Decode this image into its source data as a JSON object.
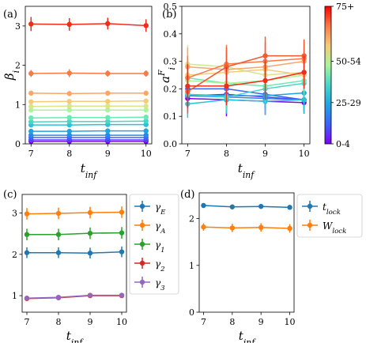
{
  "chart_data": [
    {
      "type": "line",
      "panel_label": "(a)",
      "xlabel_base": "t",
      "xlabel_sub": "inf",
      "ylabel_base": "β",
      "ylabel_sub": "i",
      "x": [
        7,
        8,
        9,
        10
      ],
      "xlim": [
        6.85,
        10.15
      ],
      "ylim": [
        0,
        3.5
      ],
      "xticks": [
        "7",
        "8",
        "9",
        "10"
      ],
      "yticks": [
        "0",
        "1",
        "2",
        "3"
      ],
      "yticks_values": [
        0,
        1,
        2,
        3
      ],
      "series": [
        {
          "values": [
            0.06,
            0.06,
            0.06,
            0.06
          ],
          "err": [
            0.02,
            0.02,
            0.02,
            0.02
          ],
          "color": "#7f00ff"
        },
        {
          "values": [
            0.1,
            0.1,
            0.1,
            0.1
          ],
          "err": [
            0.02,
            0.02,
            0.02,
            0.02
          ],
          "color": "#5a3dfc"
        },
        {
          "values": [
            0.16,
            0.16,
            0.16,
            0.16
          ],
          "err": [
            0.02,
            0.02,
            0.02,
            0.02
          ],
          "color": "#3c63f7"
        },
        {
          "values": [
            0.22,
            0.22,
            0.22,
            0.22
          ],
          "err": [
            0.02,
            0.02,
            0.02,
            0.02
          ],
          "color": "#2a86ef"
        },
        {
          "values": [
            0.32,
            0.32,
            0.33,
            0.33
          ],
          "err": [
            0.03,
            0.03,
            0.03,
            0.03
          ],
          "color": "#1ea4e4"
        },
        {
          "values": [
            0.48,
            0.48,
            0.49,
            0.49
          ],
          "err": [
            0.03,
            0.03,
            0.03,
            0.03
          ],
          "color": "#2bc2d8"
        },
        {
          "values": [
            0.56,
            0.57,
            0.57,
            0.58
          ],
          "err": [
            0.04,
            0.04,
            0.04,
            0.04
          ],
          "color": "#48d6c9"
        },
        {
          "values": [
            0.66,
            0.67,
            0.67,
            0.68
          ],
          "err": [
            0.04,
            0.04,
            0.04,
            0.04
          ],
          "color": "#6ae9b4"
        },
        {
          "values": [
            0.86,
            0.86,
            0.86,
            0.86
          ],
          "err": [
            0.04,
            0.04,
            0.04,
            0.04
          ],
          "color": "#a8f59a"
        },
        {
          "values": [
            0.95,
            0.96,
            0.96,
            0.96
          ],
          "err": [
            0.05,
            0.05,
            0.05,
            0.05
          ],
          "color": "#d8e58a"
        },
        {
          "values": [
            1.07,
            1.08,
            1.08,
            1.09
          ],
          "err": [
            0.05,
            0.05,
            0.05,
            0.05
          ],
          "color": "#f5cb79"
        },
        {
          "values": [
            1.29,
            1.28,
            1.29,
            1.29
          ],
          "err": [
            0.06,
            0.06,
            0.06,
            0.06
          ],
          "color": "#fca56a"
        },
        {
          "values": [
            1.79,
            1.8,
            1.79,
            1.79
          ],
          "err": [
            0.09,
            0.1,
            0.08,
            0.08
          ],
          "color": "#f97a47"
        },
        {
          "values": [
            3.05,
            3.04,
            3.06,
            3.01
          ],
          "err": [
            0.18,
            0.16,
            0.15,
            0.16
          ],
          "color": "#ef2e1a"
        }
      ]
    },
    {
      "type": "line",
      "panel_label": "(b)",
      "xlabel_base": "t",
      "xlabel_sub": "inf",
      "ylabel_base": "a",
      "ylabel_sub": "i",
      "ylabel_sup": "F",
      "x": [
        7,
        8,
        9,
        10
      ],
      "xlim": [
        6.85,
        10.15
      ],
      "ylim": [
        0,
        0.5
      ],
      "xticks": [
        "7",
        "8",
        "9",
        "10"
      ],
      "yticks": [
        "0.0",
        "0.1",
        "0.2",
        "0.3",
        "0.4",
        "0.5"
      ],
      "yticks_values": [
        0,
        0.1,
        0.2,
        0.3,
        0.4,
        0.5
      ],
      "series": [
        {
          "values": [
            0.165,
            0.16,
            0.155,
            0.15
          ],
          "err": [
            0.05,
            0.06,
            0.05,
            0.04
          ],
          "color": "#7f00ff"
        },
        {
          "values": [
            0.175,
            0.18,
            0.17,
            0.16
          ],
          "err": [
            0.04,
            0.05,
            0.04,
            0.04
          ],
          "color": "#5a3dfc"
        },
        {
          "values": [
            0.2,
            0.2,
            0.18,
            0.16
          ],
          "err": [
            0.05,
            0.06,
            0.05,
            0.05
          ],
          "color": "#3c63f7"
        },
        {
          "values": [
            0.175,
            0.17,
            0.165,
            0.16
          ],
          "err": [
            0.04,
            0.05,
            0.04,
            0.04
          ],
          "color": "#2a86ef"
        },
        {
          "values": [
            0.18,
            0.175,
            0.175,
            0.185
          ],
          "err": [
            0.04,
            0.04,
            0.04,
            0.04
          ],
          "color": "#1ea4e4"
        },
        {
          "values": [
            0.145,
            0.16,
            0.155,
            0.16
          ],
          "err": [
            0.05,
            0.05,
            0.05,
            0.05
          ],
          "color": "#2bc2d8"
        },
        {
          "values": [
            0.18,
            0.17,
            0.2,
            0.22
          ],
          "err": [
            0.05,
            0.05,
            0.05,
            0.05
          ],
          "color": "#48d6c9"
        },
        {
          "values": [
            0.24,
            0.22,
            0.21,
            0.23
          ],
          "err": [
            0.06,
            0.06,
            0.05,
            0.05
          ],
          "color": "#6ae9b4"
        },
        {
          "values": [
            0.23,
            0.22,
            0.23,
            0.25
          ],
          "err": [
            0.06,
            0.06,
            0.05,
            0.05
          ],
          "color": "#a8f59a"
        },
        {
          "values": [
            0.29,
            0.28,
            0.25,
            0.26
          ],
          "err": [
            0.07,
            0.06,
            0.05,
            0.05
          ],
          "color": "#d8e58a"
        },
        {
          "values": [
            0.25,
            0.26,
            0.27,
            0.25
          ],
          "err": [
            0.06,
            0.06,
            0.05,
            0.05
          ],
          "color": "#f5cb79"
        },
        {
          "values": [
            0.28,
            0.27,
            0.28,
            0.3
          ],
          "err": [
            0.07,
            0.06,
            0.06,
            0.05
          ],
          "color": "#fca56a"
        },
        {
          "values": [
            0.24,
            0.29,
            0.3,
            0.31
          ],
          "err": [
            0.08,
            0.07,
            0.07,
            0.06
          ],
          "color": "#f97a47"
        },
        {
          "values": [
            0.19,
            0.28,
            0.32,
            0.32
          ],
          "err": [
            0.08,
            0.07,
            0.07,
            0.06
          ],
          "color": "#f45a30"
        },
        {
          "values": [
            0.21,
            0.21,
            0.23,
            0.26
          ],
          "err": [
            0.08,
            0.07,
            0.07,
            0.06
          ],
          "color": "#ef2e1a"
        }
      ],
      "colorbar": {
        "labels": [
          "75+",
          "50-54",
          "25-29",
          "0-4"
        ],
        "label_positions": [
          1.0,
          0.6,
          0.3,
          0.0
        ],
        "stops": [
          "#7f00ff",
          "#3c63f7",
          "#1ea4e4",
          "#48d6c9",
          "#a8f59a",
          "#f5cb79",
          "#f97a47",
          "#ff0000"
        ]
      }
    },
    {
      "type": "line",
      "panel_label": "(c)",
      "xlabel_base": "t",
      "xlabel_sub": "inf",
      "x": [
        7,
        8,
        9,
        10
      ],
      "xlim": [
        6.85,
        10.15
      ],
      "ylim": [
        0.6,
        3.45
      ],
      "xticks": [
        "7",
        "8",
        "9",
        "10"
      ],
      "yticks": [
        "1",
        "2",
        "3"
      ],
      "yticks_values": [
        1,
        2,
        3
      ],
      "legend_position": "outside-right",
      "series": [
        {
          "name_base": "γ",
          "name_sub": "E",
          "values": [
            2.04,
            2.04,
            2.03,
            2.06
          ],
          "err": [
            0.13,
            0.13,
            0.13,
            0.13
          ],
          "color": "#1f77b4"
        },
        {
          "name_base": "γ",
          "name_sub": "A",
          "values": [
            2.98,
            2.99,
            3.01,
            3.02
          ],
          "err": [
            0.14,
            0.14,
            0.14,
            0.14
          ],
          "color": "#ff7f0e"
        },
        {
          "name_base": "γ",
          "name_sub": "1",
          "values": [
            2.48,
            2.48,
            2.51,
            2.52
          ],
          "err": [
            0.14,
            0.14,
            0.14,
            0.14
          ],
          "color": "#2ca02c"
        },
        {
          "name_base": "γ",
          "name_sub": "2",
          "values": [
            0.93,
            0.95,
            1.0,
            1.0
          ],
          "err": [
            0.05,
            0.05,
            0.05,
            0.05
          ],
          "color": "#d62728"
        },
        {
          "name_base": "γ",
          "name_sub": "3",
          "values": [
            0.94,
            0.96,
            1.01,
            1.01
          ],
          "err": [
            0.05,
            0.05,
            0.05,
            0.05
          ],
          "color": "#9467bd"
        }
      ]
    },
    {
      "type": "line",
      "panel_label": "(d)",
      "xlabel_base": "t",
      "xlabel_sub": "inf",
      "x": [
        7,
        8,
        9,
        10
      ],
      "xlim": [
        6.85,
        10.15
      ],
      "ylim": [
        0,
        2.55
      ],
      "xticks": [
        "7",
        "8",
        "9",
        "10"
      ],
      "yticks": [
        "0",
        "1",
        "2"
      ],
      "yticks_values": [
        0,
        1,
        2
      ],
      "legend_position": "outside-right",
      "series": [
        {
          "name_base": "t",
          "name_sub": "lock",
          "values": [
            2.28,
            2.25,
            2.26,
            2.24
          ],
          "err": [
            0.05,
            0.05,
            0.05,
            0.05
          ],
          "color": "#1f77b4"
        },
        {
          "name_base": "W",
          "name_sub": "lock",
          "values": [
            1.82,
            1.8,
            1.81,
            1.79
          ],
          "err": [
            0.08,
            0.09,
            0.09,
            0.09
          ],
          "color": "#ff7f0e"
        }
      ]
    }
  ]
}
